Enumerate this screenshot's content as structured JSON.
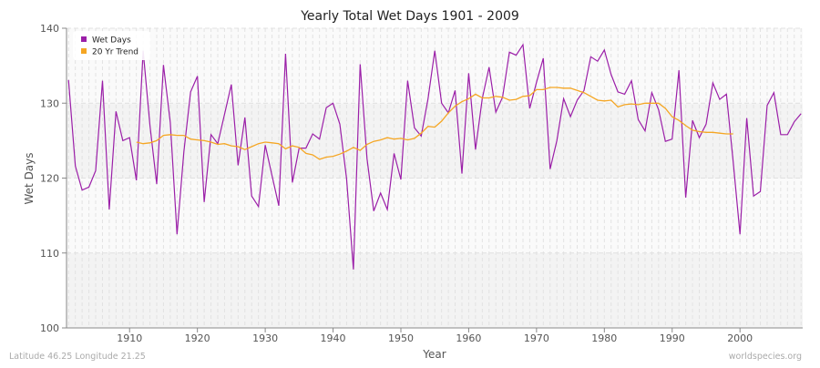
{
  "chart_data": {
    "type": "line",
    "title": "Yearly Total Wet Days 1901 - 2009",
    "xlabel": "Year",
    "ylabel": "Wet Days",
    "xlim": [
      1901,
      2009
    ],
    "ylim": [
      100,
      140
    ],
    "x_ticks": [
      1910,
      1920,
      1930,
      1940,
      1950,
      1960,
      1970,
      1980,
      1990,
      2000
    ],
    "y_ticks": [
      100,
      110,
      120,
      130,
      140
    ],
    "grid": true,
    "legend_position": "top-left",
    "series": [
      {
        "name": "Wet Days",
        "color": "#9b1fa8",
        "x_start": 1901,
        "values": [
          133.1,
          121.6,
          118.4,
          118.8,
          121.0,
          133.0,
          115.8,
          128.9,
          125.0,
          125.4,
          119.7,
          137.0,
          127.0,
          119.2,
          135.1,
          127.4,
          112.5,
          123.5,
          131.5,
          133.6,
          116.8,
          125.8,
          124.6,
          128.5,
          132.5,
          121.7,
          128.1,
          117.6,
          116.2,
          124.4,
          120.3,
          116.3,
          136.6,
          119.4,
          124.0,
          124.0,
          125.9,
          125.2,
          129.4,
          130.0,
          127.2,
          119.9,
          107.8,
          135.2,
          122.6,
          115.6,
          118.0,
          115.8,
          123.3,
          119.8,
          133.0,
          126.7,
          125.6,
          130.6,
          137.0,
          130.0,
          128.7,
          131.7,
          120.6,
          134.0,
          123.8,
          130.6,
          134.8,
          128.8,
          130.8,
          136.8,
          136.4,
          137.8,
          129.3,
          132.8,
          136.0,
          121.2,
          125.0,
          130.6,
          128.2,
          130.4,
          131.7,
          136.2,
          135.6,
          137.1,
          133.8,
          131.5,
          131.2,
          133.0,
          127.8,
          126.3,
          131.4,
          129.1,
          124.9,
          125.2,
          134.4,
          117.4,
          127.7,
          125.4,
          127.2,
          132.7,
          130.5,
          131.2,
          122.2,
          112.5,
          128.0,
          117.6,
          118.2,
          129.7,
          131.4,
          125.8,
          125.8,
          127.5,
          128.6
        ]
      },
      {
        "name": "20 Yr Trend",
        "color": "#f5a623",
        "x_start": 1911,
        "values": [
          124.8,
          124.6,
          124.7,
          125.0,
          125.7,
          125.8,
          125.7,
          125.7,
          125.2,
          125.1,
          125.0,
          124.8,
          124.5,
          124.6,
          124.3,
          124.2,
          123.8,
          124.2,
          124.6,
          124.8,
          124.7,
          124.6,
          123.9,
          124.3,
          124.1,
          123.3,
          123.1,
          122.5,
          122.8,
          122.9,
          123.2,
          123.6,
          124.1,
          123.7,
          124.5,
          124.9,
          125.1,
          125.4,
          125.2,
          125.3,
          125.1,
          125.3,
          126.0,
          126.9,
          126.8,
          127.6,
          128.7,
          129.6,
          130.2,
          130.6,
          131.2,
          130.7,
          130.7,
          130.9,
          130.8,
          130.4,
          130.5,
          130.9,
          131.0,
          131.8,
          131.8,
          132.1,
          132.1,
          132.0,
          132.0,
          131.7,
          131.4,
          130.9,
          130.4,
          130.3,
          130.4,
          129.5,
          129.8,
          129.9,
          129.8,
          130.0,
          130.0,
          130.0,
          129.3,
          128.2,
          127.7,
          127.0,
          126.4,
          126.2,
          126.1,
          126.1,
          126.0,
          125.9,
          125.9
        ]
      }
    ]
  },
  "footer": {
    "location": "Latitude 46.25 Longitude 21.25",
    "source": "worldspecies.org"
  }
}
